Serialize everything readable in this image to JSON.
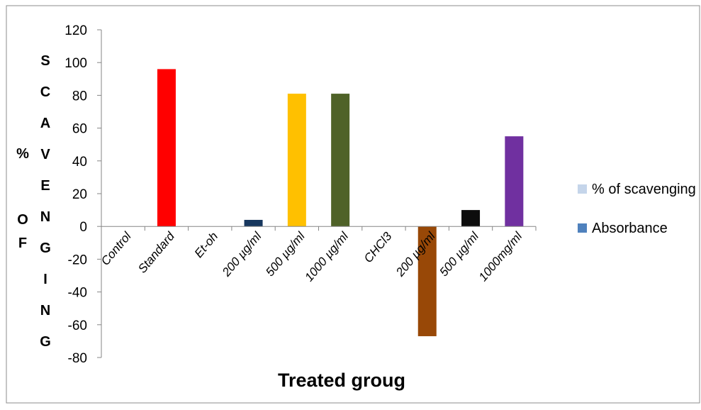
{
  "chart_data": {
    "type": "bar",
    "categories": [
      "Control",
      "Standard",
      "Et-oh",
      "200 µg/ml",
      "500 µg/ml",
      "1000 µg/ml",
      "CHCl3",
      "200 µg/ml",
      "500 µg/ml",
      "1000mg/ml"
    ],
    "values": [
      0,
      96,
      0,
      4,
      81,
      81,
      0,
      -67,
      10,
      55
    ],
    "bar_colors": [
      "#ffffff",
      "#ff0000",
      "#ffffff",
      "#17375e",
      "#ffc000",
      "#4f6228",
      "#ffffff",
      "#984807",
      "#0d0d0d",
      "#7030a0"
    ],
    "ylim": [
      -80,
      120
    ],
    "yticks": [
      120,
      100,
      80,
      60,
      40,
      20,
      0,
      -20,
      -40,
      -60,
      -80
    ],
    "ylabel": {
      "percent": "%",
      "of": [
        "O",
        "F"
      ],
      "scavenging": [
        "S",
        "C",
        "A",
        "V",
        "E",
        "N",
        "G",
        "I",
        "N",
        "G"
      ]
    },
    "xlabel": "Treated groug",
    "legend": [
      {
        "name": "% of scavenging",
        "color": "#c5d5ea"
      },
      {
        "name": "Absorbance",
        "color": "#4f81bd"
      }
    ],
    "legend_position": "right",
    "grid": false
  }
}
